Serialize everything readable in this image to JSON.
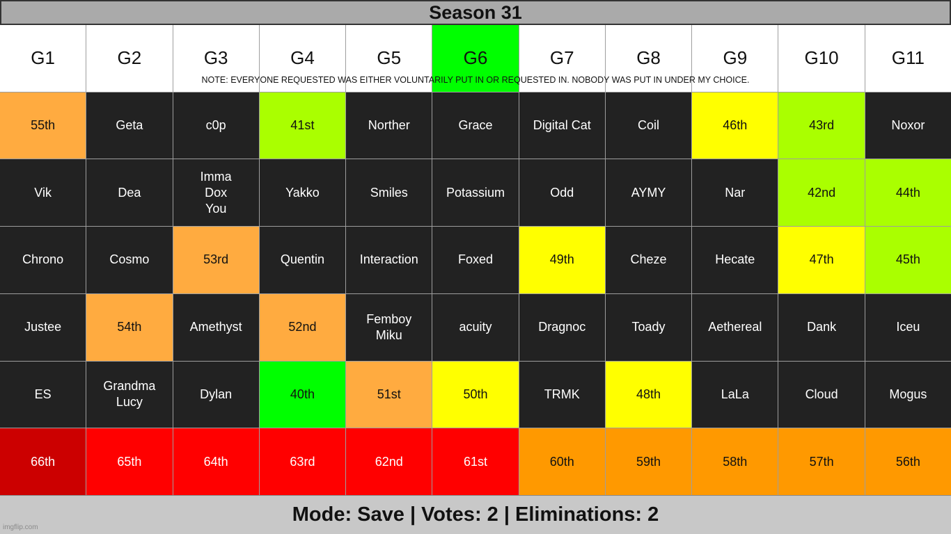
{
  "title": "Season 31",
  "note": "NOTE: EVERYONE REQUESTED WAS EITHER VOLUNTARILY PUT IN OR REQUESTED IN. NOBODY WAS PUT IN UNDER MY CHOICE.",
  "footer": "Mode: Save | Votes: 2 | Eliminations: 2",
  "watermark": "imgflip.com",
  "colors": {
    "alive": "#222222",
    "orange_light": "#ffab40",
    "lime": "#aaff00",
    "yellow": "#ffff00",
    "green": "#00ff00",
    "dark_red": "#cc0000",
    "red": "#ff0000",
    "orange": "#ff9900"
  },
  "groups": [
    {
      "label": "G1",
      "highlight": false
    },
    {
      "label": "G2",
      "highlight": false
    },
    {
      "label": "G3",
      "highlight": false
    },
    {
      "label": "G4",
      "highlight": false
    },
    {
      "label": "G5",
      "highlight": false
    },
    {
      "label": "G6",
      "highlight": true
    },
    {
      "label": "G7",
      "highlight": false
    },
    {
      "label": "G8",
      "highlight": false
    },
    {
      "label": "G9",
      "highlight": false
    },
    {
      "label": "G10",
      "highlight": false
    },
    {
      "label": "G11",
      "highlight": false
    }
  ],
  "rows": [
    [
      {
        "text": "55th",
        "color": "orange_light"
      },
      {
        "text": "Geta",
        "color": "alive"
      },
      {
        "text": "c0p",
        "color": "alive"
      },
      {
        "text": "41st",
        "color": "lime"
      },
      {
        "text": "Norther",
        "color": "alive"
      },
      {
        "text": "Grace",
        "color": "alive"
      },
      {
        "text": "Digital Cat",
        "color": "alive"
      },
      {
        "text": "Coil",
        "color": "alive"
      },
      {
        "text": "46th",
        "color": "yellow"
      },
      {
        "text": "43rd",
        "color": "lime"
      },
      {
        "text": "Noxor",
        "color": "alive"
      }
    ],
    [
      {
        "text": "Vik",
        "color": "alive"
      },
      {
        "text": "Dea",
        "color": "alive"
      },
      {
        "text": "Imma\nDox\nYou",
        "color": "alive"
      },
      {
        "text": "Yakko",
        "color": "alive"
      },
      {
        "text": "Smiles",
        "color": "alive"
      },
      {
        "text": "Potassium",
        "color": "alive"
      },
      {
        "text": "Odd",
        "color": "alive"
      },
      {
        "text": "AYMY",
        "color": "alive"
      },
      {
        "text": "Nar",
        "color": "alive"
      },
      {
        "text": "42nd",
        "color": "lime"
      },
      {
        "text": "44th",
        "color": "lime"
      }
    ],
    [
      {
        "text": "Chrono",
        "color": "alive"
      },
      {
        "text": "Cosmo",
        "color": "alive"
      },
      {
        "text": "53rd",
        "color": "orange_light"
      },
      {
        "text": "Quentin",
        "color": "alive"
      },
      {
        "text": "Interaction",
        "color": "alive"
      },
      {
        "text": "Foxed",
        "color": "alive"
      },
      {
        "text": "49th",
        "color": "yellow"
      },
      {
        "text": "Cheze",
        "color": "alive"
      },
      {
        "text": "Hecate",
        "color": "alive"
      },
      {
        "text": "47th",
        "color": "yellow"
      },
      {
        "text": "45th",
        "color": "lime"
      }
    ],
    [
      {
        "text": "Justee",
        "color": "alive"
      },
      {
        "text": "54th",
        "color": "orange_light"
      },
      {
        "text": "Amethyst",
        "color": "alive"
      },
      {
        "text": "52nd",
        "color": "orange_light"
      },
      {
        "text": "Femboy\nMiku",
        "color": "alive"
      },
      {
        "text": "acuity",
        "color": "alive"
      },
      {
        "text": "Dragnoc",
        "color": "alive"
      },
      {
        "text": "Toady",
        "color": "alive"
      },
      {
        "text": "Aethereal",
        "color": "alive"
      },
      {
        "text": "Dank",
        "color": "alive"
      },
      {
        "text": "Iceu",
        "color": "alive"
      }
    ],
    [
      {
        "text": "ES",
        "color": "alive"
      },
      {
        "text": "Grandma\nLucy",
        "color": "alive"
      },
      {
        "text": "Dylan",
        "color": "alive"
      },
      {
        "text": "40th",
        "color": "green"
      },
      {
        "text": "51st",
        "color": "orange_light"
      },
      {
        "text": "50th",
        "color": "yellow"
      },
      {
        "text": "TRMK",
        "color": "alive"
      },
      {
        "text": "48th",
        "color": "yellow"
      },
      {
        "text": "LaLa",
        "color": "alive"
      },
      {
        "text": "Cloud",
        "color": "alive"
      },
      {
        "text": "Mogus",
        "color": "alive"
      }
    ],
    [
      {
        "text": "66th",
        "color": "dark_red"
      },
      {
        "text": "65th",
        "color": "red"
      },
      {
        "text": "64th",
        "color": "red"
      },
      {
        "text": "63rd",
        "color": "red"
      },
      {
        "text": "62nd",
        "color": "red"
      },
      {
        "text": "61st",
        "color": "red"
      },
      {
        "text": "60th",
        "color": "orange"
      },
      {
        "text": "59th",
        "color": "orange"
      },
      {
        "text": "58th",
        "color": "orange"
      },
      {
        "text": "57th",
        "color": "orange"
      },
      {
        "text": "56th",
        "color": "orange"
      }
    ]
  ]
}
